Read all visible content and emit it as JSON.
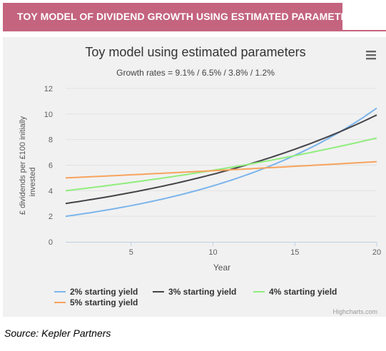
{
  "banner": {
    "title": "TOY MODEL OF DIVIDEND GROWTH USING ESTIMATED PARAMETERS"
  },
  "source": "Source: Kepler Partners",
  "credits": "Highcharts.com",
  "menu": {
    "icon": "hamburger-menu-icon"
  },
  "colors": {
    "banner": "#c4647f",
    "panel": "#f1f1f1"
  },
  "chart_data": {
    "type": "line",
    "title": "Toy model using estimated parameters",
    "subtitle": "Growth rates = 9.1% / 6.5% / 3.8% / 1.2%",
    "xlabel": "Year",
    "ylabel": "£ dividends per £100 initially invested",
    "xlim": [
      1,
      20
    ],
    "ylim": [
      0,
      12
    ],
    "xticks": [
      5,
      10,
      15,
      20
    ],
    "yticks": [
      0,
      2,
      4,
      6,
      8,
      10,
      12
    ],
    "grid": "horizontal",
    "legend_position": "bottom",
    "series": [
      {
        "name": "2% starting yield",
        "color": "#7cb5ec",
        "start": 2,
        "growth": 0.091
      },
      {
        "name": "3% starting yield",
        "color": "#434348",
        "start": 3,
        "growth": 0.065
      },
      {
        "name": "4% starting yield",
        "color": "#90ed7d",
        "start": 4,
        "growth": 0.038
      },
      {
        "name": "5% starting yield",
        "color": "#f7a35c",
        "start": 5,
        "growth": 0.012
      }
    ]
  }
}
